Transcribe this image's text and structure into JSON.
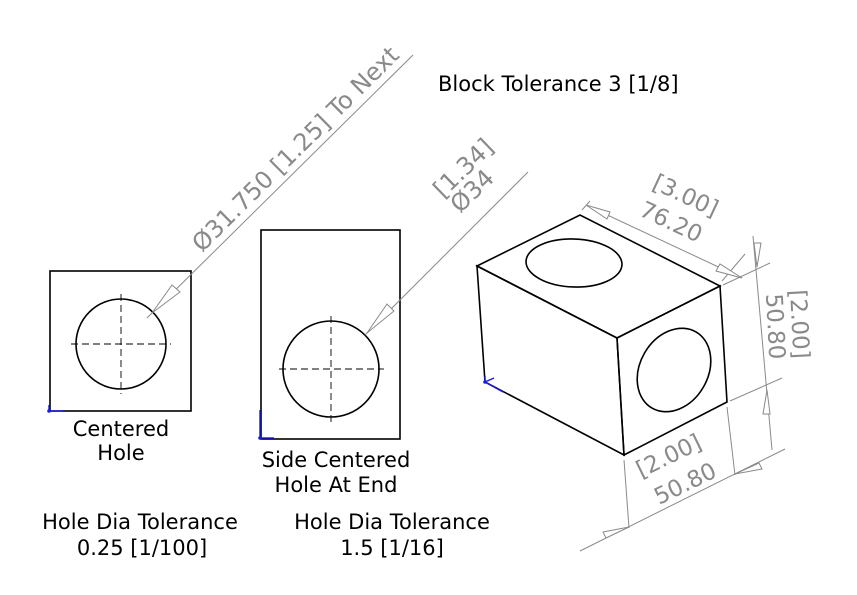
{
  "title": "Block Tolerance 3 [1/8]",
  "view1": {
    "caption_line1": "Centered",
    "caption_line2": "Hole",
    "hole_dim": "Ø31.750 [1.25] To Next",
    "tolerance_label": "Hole Dia Tolerance",
    "tolerance_value": "0.25 [1/100]"
  },
  "view2": {
    "caption_line1": "Side Centered",
    "caption_line2": "Hole At End",
    "hole_dim_line1": "[1.34]",
    "hole_dim_line2": "Ø34",
    "tolerance_label": "Hole Dia Tolerance",
    "tolerance_value": "1.5 [1/16]"
  },
  "iso_view": {
    "dim_top_inch": "[3.00]",
    "dim_top_mm": "76.20",
    "dim_right_inch": "[2.00]",
    "dim_right_mm": "50.80",
    "dim_bottom_inch": "[2.00]",
    "dim_bottom_mm": "50.80"
  },
  "colors": {
    "geometry": "#000000",
    "dimension": "#8a8a8a",
    "origin_axes": "#1a1ae6"
  }
}
